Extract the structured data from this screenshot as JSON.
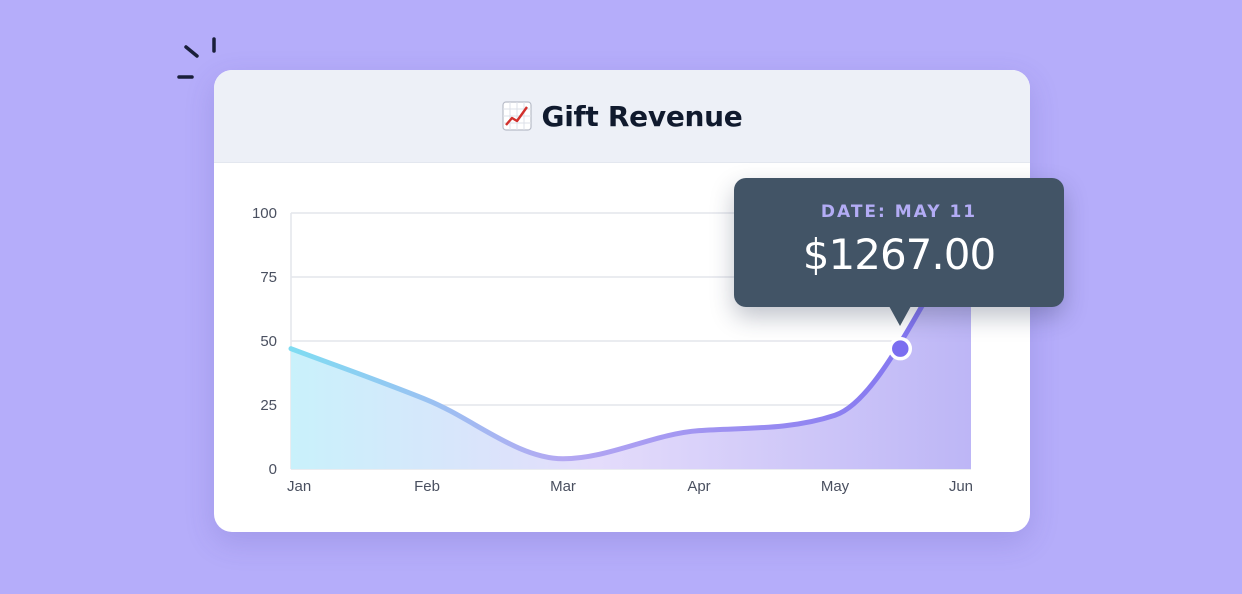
{
  "card": {
    "title": "Gift Revenue",
    "title_icon": "chart-increasing-icon"
  },
  "tooltip": {
    "label": "DATE: MAY 11",
    "value": "$1267.00"
  },
  "colors": {
    "background": "#b5adfa",
    "line_start": "#7fdcf2",
    "line_end": "#7b6ef0",
    "tooltip_bg": "#425466",
    "tooltip_label": "#b3acf5",
    "marker": "#7b6ef0"
  },
  "chart_data": {
    "type": "area",
    "title": "Gift Revenue",
    "categories": [
      "Jan",
      "Feb",
      "Mar",
      "Apr",
      "May",
      "Jun"
    ],
    "x": [
      0,
      1,
      2,
      3,
      4,
      5
    ],
    "values": [
      47,
      27,
      4,
      15,
      21,
      95
    ],
    "y_ticks": [
      0,
      25,
      50,
      75,
      100
    ],
    "ylim": [
      0,
      100
    ],
    "xlabel": "",
    "ylabel": "",
    "grid": true,
    "highlight": {
      "x": 4.48,
      "y": 47,
      "label": "DATE: MAY 11",
      "value": "$1267.00"
    }
  }
}
